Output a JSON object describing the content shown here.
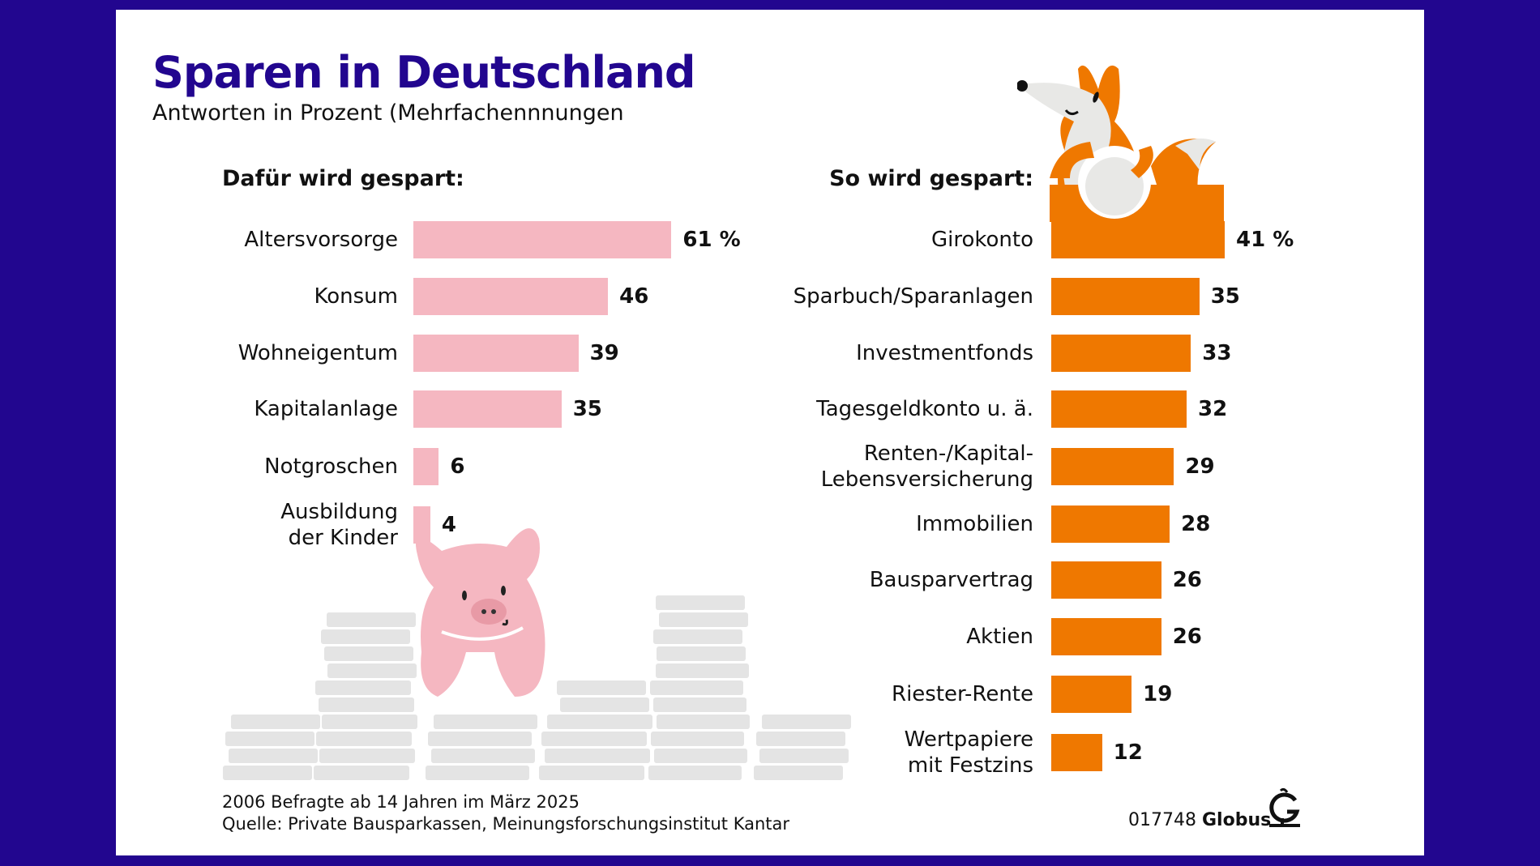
{
  "header": {
    "title": "Sparen in Deutschland",
    "subtitle": "Antworten in Prozent (Mehrfachennnungen"
  },
  "colors": {
    "background": "#22068f",
    "left_bars": "#f5b7c1",
    "right_bars": "#ef7800",
    "title": "#22068f",
    "coins": "#e4e4e4"
  },
  "illustrations": {
    "left": "piggy-bank-pig",
    "right": "fox-holding-coin"
  },
  "chart_data": [
    {
      "type": "bar",
      "orientation": "horizontal",
      "title": "Dafür wird gespart:",
      "unit": "%",
      "categories": [
        "Altersvorsorge",
        "Konsum",
        "Wohneigentum",
        "Kapitalanlage",
        "Notgroschen",
        "Ausbildung der Kinder"
      ],
      "labels": [
        [
          "Altersvorsorge"
        ],
        [
          "Konsum"
        ],
        [
          "Wohneigentum"
        ],
        [
          "Kapitalanlage"
        ],
        [
          "Notgroschen"
        ],
        [
          "Ausbildung",
          "der Kinder"
        ]
      ],
      "values": [
        61,
        46,
        39,
        35,
        6,
        4
      ],
      "value_labels": [
        "61 %",
        "46",
        "39",
        "35",
        "6",
        "4"
      ]
    },
    {
      "type": "bar",
      "orientation": "horizontal",
      "title": "So wird gespart:",
      "unit": "%",
      "categories": [
        "Girokonto",
        "Sparbuch/Sparanlagen",
        "Investmentfonds",
        "Tagesgeldkonto u. ä.",
        "Renten-/Kapital-Lebensversicherung",
        "Immobilien",
        "Bausparvertrag",
        "Aktien",
        "Riester-Rente",
        "Wertpapiere mit Festzins"
      ],
      "labels": [
        [
          "Girokonto"
        ],
        [
          "Sparbuch/Sparanlagen"
        ],
        [
          "Investmentfonds"
        ],
        [
          "Tagesgeldkonto u. ä."
        ],
        [
          "Renten-/Kapital-",
          "Lebensversicherung"
        ],
        [
          "Immobilien"
        ],
        [
          "Bausparvertrag"
        ],
        [
          "Aktien"
        ],
        [
          "Riester-Rente"
        ],
        [
          "Wertpapiere",
          "mit Festzins"
        ]
      ],
      "values": [
        41,
        35,
        33,
        32,
        29,
        28,
        26,
        26,
        19,
        12
      ],
      "value_labels": [
        "41 %",
        "35",
        "33",
        "32",
        "29",
        "28",
        "26",
        "26",
        "19",
        "12"
      ]
    }
  ],
  "footer": {
    "note": "2006 Befragte ab 14 Jahren im März 2025",
    "source": "Quelle: Private Bausparkassen, Meinungsforschungsinstitut Kantar",
    "id": "017748",
    "brand": "Globus"
  }
}
